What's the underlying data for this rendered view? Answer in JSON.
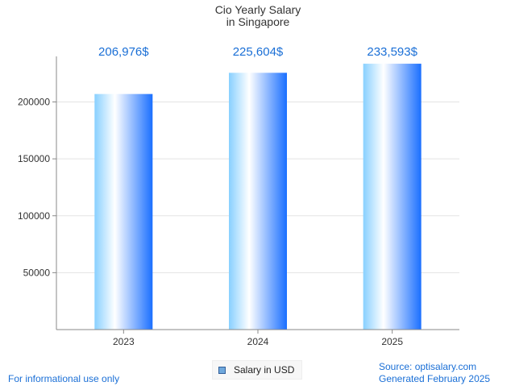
{
  "chart_data": {
    "type": "bar",
    "title": [
      "Cio Yearly Salary",
      "in Singapore"
    ],
    "categories": [
      "2023",
      "2024",
      "2025"
    ],
    "series": [
      {
        "name": "Salary in USD",
        "values": [
          206976,
          225604,
          233593
        ]
      }
    ],
    "data_labels": [
      "206,976$",
      "225,604$",
      "233,593$"
    ],
    "y_ticks": [
      50000,
      100000,
      150000,
      200000
    ],
    "ylim": [
      0,
      240000
    ],
    "grid": true,
    "legend_position": "bottom-center",
    "colors": {
      "bar_light": "#ffffff",
      "bar_mid": "#9ad8ff",
      "bar_dark": "#1a6fff",
      "label": "#1a6fd6"
    }
  },
  "footer": {
    "left": "For informational use only",
    "source": "Source: optisalary.com",
    "generated": "Generated February 2025"
  }
}
